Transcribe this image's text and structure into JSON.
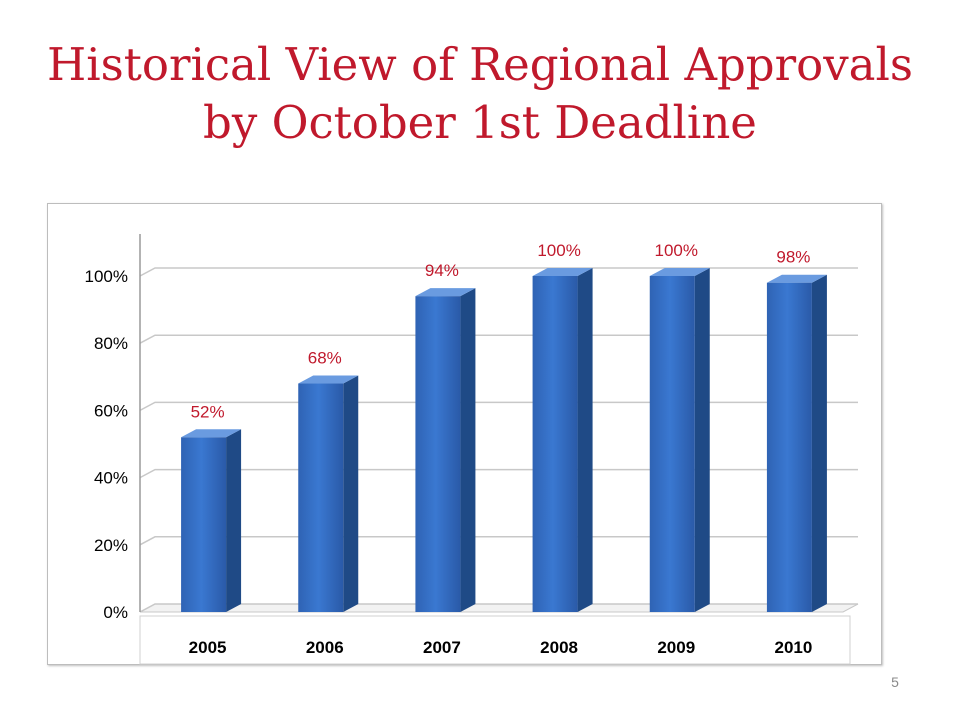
{
  "slide": {
    "title_line1": "Historical View of Regional Approvals",
    "title_line2": "by October 1st Deadline",
    "page_number": "5",
    "title_color": "#c0192c"
  },
  "chart_data": {
    "type": "bar",
    "categories": [
      "2005",
      "2006",
      "2007",
      "2008",
      "2009",
      "2010"
    ],
    "values": [
      52,
      68,
      94,
      100,
      100,
      98
    ],
    "data_labels": [
      "52%",
      "68%",
      "94%",
      "100%",
      "100%",
      "98%"
    ],
    "y_ticks": [
      "0%",
      "20%",
      "40%",
      "60%",
      "80%",
      "100%"
    ],
    "ylim": [
      0,
      100
    ],
    "grid": true,
    "legend": "none",
    "style": "3d-column",
    "colors": {
      "bar_front": "#3a78d1",
      "bar_side": "#1f4a86",
      "bar_top": "#6a9be0",
      "data_label": "#c0192c",
      "gridline": "#c8c8c8"
    }
  }
}
